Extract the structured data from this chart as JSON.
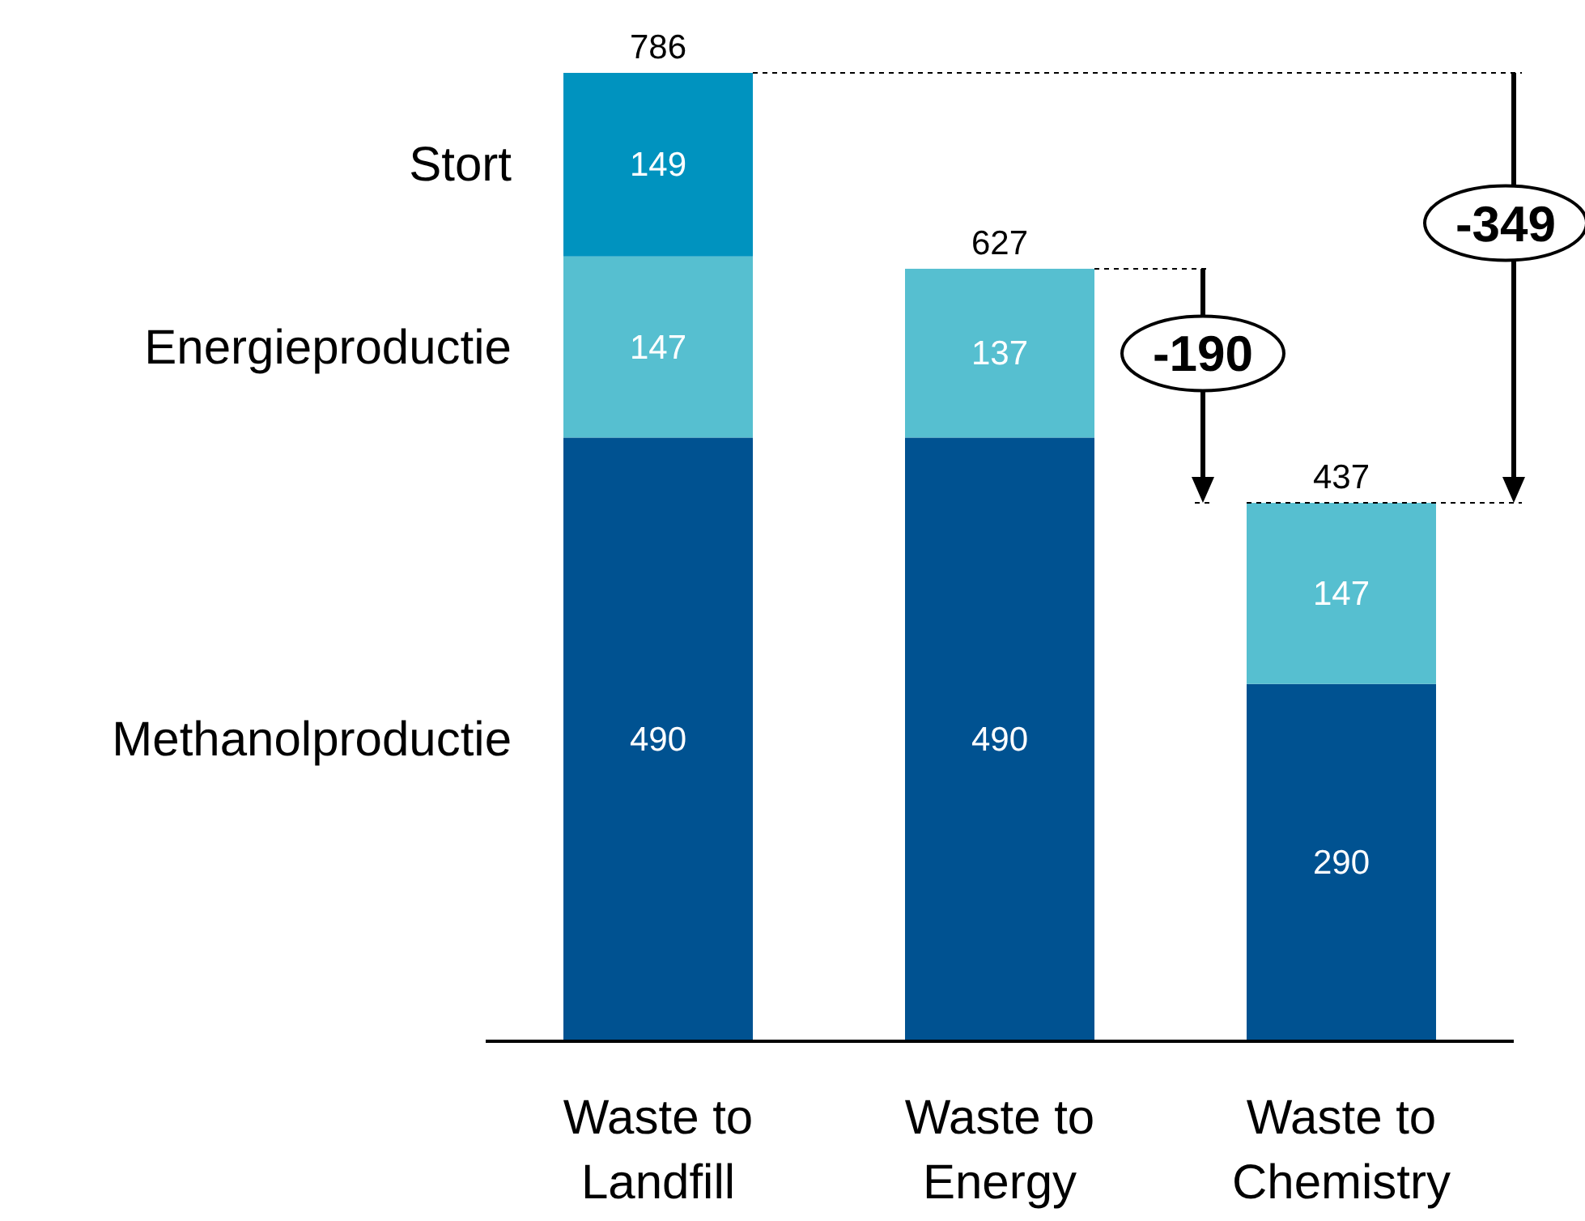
{
  "chart_data": {
    "type": "bar",
    "stacked": true,
    "categories": [
      "Waste to Landfill",
      "Waste to Energy",
      "Waste to Chemistry"
    ],
    "series": [
      {
        "name": "Methanolproductie",
        "color": "#005291",
        "values": [
          490,
          490,
          290
        ]
      },
      {
        "name": "Energieproductie",
        "color": "#56bfd0",
        "values": [
          147,
          137,
          147
        ]
      },
      {
        "name": "Stort",
        "color": "#0093bf",
        "values": [
          149,
          null,
          null
        ]
      }
    ],
    "data_labels": true,
    "totals": [
      "786",
      "627",
      "437"
    ],
    "legend": "left",
    "annotations": [
      "-190",
      "-349"
    ]
  }
}
